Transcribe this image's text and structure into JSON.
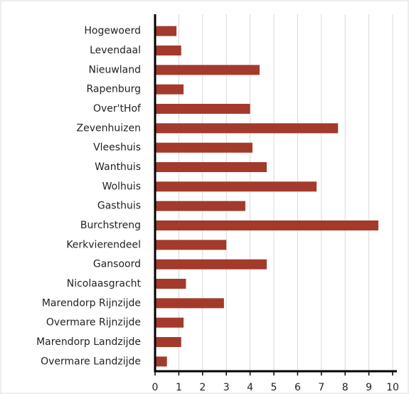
{
  "chart_data": {
    "type": "bar",
    "orientation": "horizontal",
    "categories": [
      "Hogewoerd",
      "Levendaal",
      "Nieuwland",
      "Rapenburg",
      "Over'tHof",
      "Zevenhuizen",
      "Vleeshuis",
      "Wanthuis",
      "Wolhuis",
      "Gasthuis",
      "Burchstreng",
      "Kerkvierendeel",
      "Gansoord",
      "Nicolaasgracht",
      "Marendorp Rijnzijde",
      "Overmare Rijnzijde",
      "Marendorp Landzijde",
      "Overmare Landzijde"
    ],
    "values": [
      0.9,
      1.1,
      4.4,
      1.2,
      4.0,
      7.7,
      4.1,
      4.7,
      6.8,
      3.8,
      9.4,
      3.0,
      4.7,
      1.3,
      2.9,
      1.2,
      1.1,
      0.5
    ],
    "color": "#a33a2c",
    "xlim": [
      0,
      10
    ],
    "xticks": [
      0,
      1,
      2,
      3,
      4,
      5,
      6,
      7,
      8,
      9,
      10
    ],
    "grid": true
  }
}
